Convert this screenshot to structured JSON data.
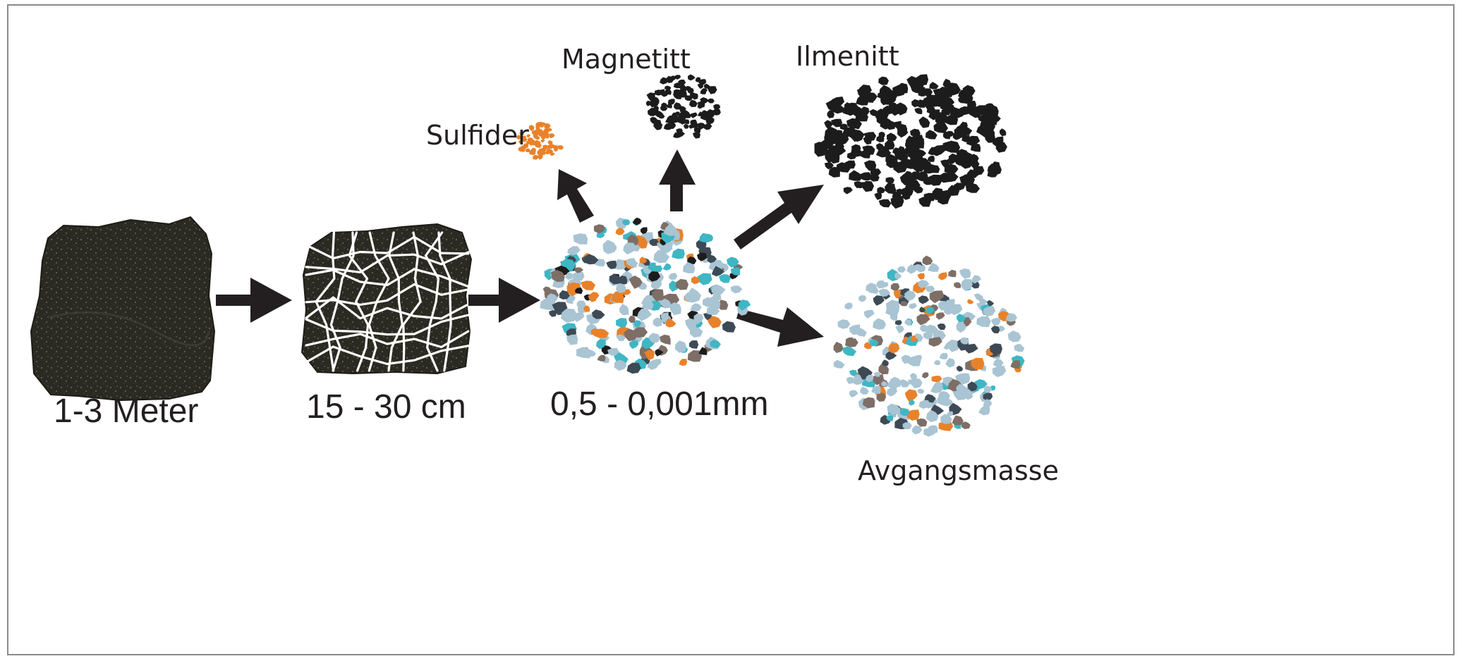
{
  "stages": [
    {
      "id": "raw-rock",
      "label": "1-3 Meter"
    },
    {
      "id": "crushed-rock",
      "label": "15 - 30 cm"
    },
    {
      "id": "ground-particles",
      "label": "0,5 - 0,001mm"
    }
  ],
  "products": [
    {
      "id": "sulfider",
      "label": "Sulfider"
    },
    {
      "id": "magnetitt",
      "label": "Magnetitt"
    },
    {
      "id": "ilmenitt",
      "label": "Ilmenitt"
    },
    {
      "id": "avgangsmasse",
      "label": "Avgangsmasse"
    }
  ],
  "colors": {
    "rock": "#2b2a22",
    "crack": "#ffffff",
    "arrow": "#231f20",
    "sulfide": "#e8822a",
    "magnetite": "#1c1c1c",
    "ilmenite": "#1c1c1c",
    "gangue_light_blue": "#a9c4d3",
    "gangue_brown": "#7d6e66",
    "gangue_slate": "#3d4a55",
    "gangue_cyan": "#3fb6c4"
  }
}
